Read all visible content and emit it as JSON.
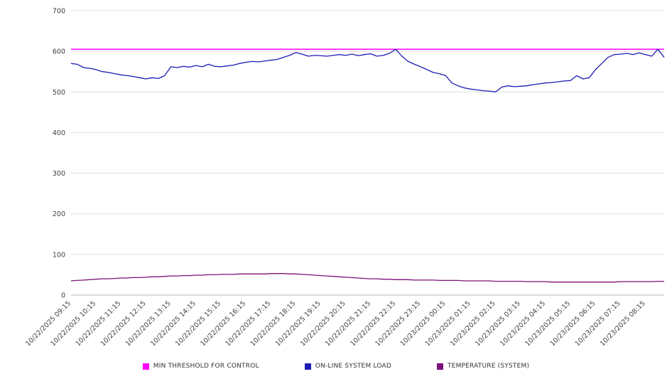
{
  "chart_data": {
    "type": "line",
    "title": "",
    "xlabel": "",
    "ylabel": "",
    "ylim": [
      0,
      700
    ],
    "y_ticks": [
      0,
      100,
      200,
      300,
      400,
      500,
      600,
      700
    ],
    "grid": "horizontal",
    "legend_position": "bottom",
    "samples_per_hour": 4,
    "x_tick_labels": [
      "10/22/2025 09:15",
      "10/22/2025 10:15",
      "10/22/2025 11:15",
      "10/22/2025 12:15",
      "10/22/2025 13:15",
      "10/22/2025 14:15",
      "10/22/2025 15:15",
      "10/22/2025 16:15",
      "10/22/2025 17:15",
      "10/22/2025 18:15",
      "10/22/2025 19:15",
      "10/22/2025 20:15",
      "10/22/2025 21:15",
      "10/22/2025 22:15",
      "10/22/2025 23:15",
      "10/23/2025 00:15",
      "10/23/2025 01:15",
      "10/23/2025 02:15",
      "10/23/2025 03:15",
      "10/23/2025 04:15",
      "10/23/2025 05:15",
      "10/23/2025 06:15",
      "10/23/2025 07:15",
      "10/23/2025 08:15"
    ],
    "series": [
      {
        "name": "MIN THRESHOLD FOR CONTROL",
        "color": "#ff00ff",
        "constant_value": 605
      },
      {
        "name": "ON-LINE SYSTEM LOAD",
        "color": "#1c1cb4",
        "values": [
          570,
          568,
          560,
          558,
          555,
          550,
          548,
          545,
          542,
          540,
          538,
          535,
          532,
          535,
          533,
          540,
          562,
          560,
          563,
          561,
          565,
          562,
          568,
          563,
          562,
          564,
          566,
          570,
          573,
          575,
          574,
          576,
          578,
          580,
          585,
          590,
          597,
          593,
          588,
          590,
          589,
          588,
          590,
          592,
          590,
          593,
          589,
          592,
          594,
          588,
          590,
          595,
          605,
          588,
          575,
          568,
          562,
          555,
          548,
          545,
          540,
          522,
          515,
          510,
          507,
          505,
          503,
          502,
          500,
          512,
          515,
          513,
          514,
          515,
          518,
          520,
          522,
          523,
          525,
          527,
          528,
          540,
          532,
          535,
          555,
          570,
          585,
          592,
          593,
          595,
          592,
          596,
          592,
          588,
          605,
          585
        ]
      },
      {
        "name": "TEMPERATURE (SYSTEM)",
        "color": "#7d0f78",
        "values": [
          35,
          36,
          37,
          38,
          39,
          40,
          40,
          41,
          42,
          42,
          43,
          43,
          44,
          45,
          45,
          46,
          47,
          47,
          48,
          48,
          49,
          49,
          50,
          50,
          51,
          51,
          51,
          52,
          52,
          52,
          52,
          52,
          53,
          53,
          53,
          52,
          52,
          51,
          50,
          49,
          48,
          47,
          46,
          45,
          44,
          43,
          42,
          41,
          40,
          40,
          39,
          39,
          38,
          38,
          38,
          37,
          37,
          37,
          37,
          36,
          36,
          36,
          36,
          35,
          35,
          35,
          35,
          35,
          34,
          34,
          34,
          34,
          34,
          33,
          33,
          33,
          33,
          32,
          32,
          32,
          32,
          32,
          32,
          32,
          32,
          32,
          32,
          32,
          33,
          33,
          33,
          33,
          33,
          33,
          34,
          34
        ]
      }
    ]
  }
}
